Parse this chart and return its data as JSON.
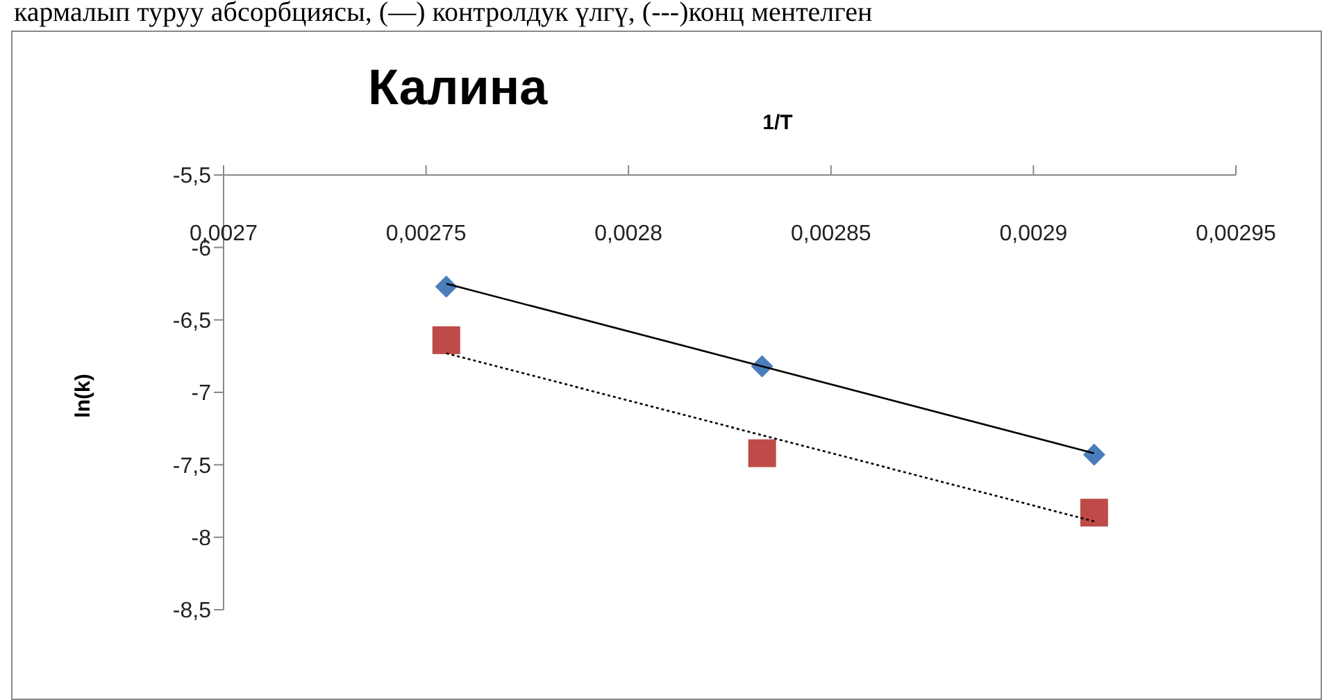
{
  "chart_data": {
    "type": "scatter",
    "title": "Калина",
    "xlabel": "1/T",
    "ylabel": "ln(k)",
    "annotations": [
      "кармалып туруу абсорбциясы, (—) контролдук үлгү, (---)конц ментелген"
    ],
    "xlim": [
      0.0027,
      0.00295
    ],
    "xticks": [
      {
        "value": 0.0027,
        "label": "0,0027"
      },
      {
        "value": 0.00275,
        "label": "0,00275"
      },
      {
        "value": 0.0028,
        "label": "0,0028"
      },
      {
        "value": 0.00285,
        "label": "0,00285"
      },
      {
        "value": 0.0029,
        "label": "0,0029"
      },
      {
        "value": 0.00295,
        "label": "0,00295"
      }
    ],
    "ylim": [
      -8.5,
      -5.5
    ],
    "yticks": [
      {
        "value": -5.5,
        "label": "-5,5"
      },
      {
        "value": -6,
        "label": "-6"
      },
      {
        "value": -6.5,
        "label": "-6,5"
      },
      {
        "value": -7,
        "label": "-7"
      },
      {
        "value": -7.5,
        "label": "-7,5"
      },
      {
        "value": -8,
        "label": "-8"
      },
      {
        "value": -8.5,
        "label": "-8,5"
      }
    ],
    "grid": false,
    "legend": false,
    "series": [
      {
        "type": "scatter",
        "marker": "diamond",
        "color": "#4a7ebb",
        "x": [
          0.002755,
          0.002833,
          0.002915
        ],
        "values": [
          -6.27,
          -6.82,
          -7.43
        ]
      },
      {
        "type": "scatter",
        "marker": "square",
        "color": "#be4b48",
        "x": [
          0.002755,
          0.002833,
          0.002915
        ],
        "values": [
          -6.64,
          -7.42,
          -7.83
        ]
      },
      {
        "type": "line",
        "marker": "none",
        "line_style": "solid",
        "color": "#000000",
        "x": [
          0.002755,
          0.002915
        ],
        "values": [
          -6.25,
          -7.42
        ]
      },
      {
        "type": "line",
        "marker": "none",
        "line_style": "dotted",
        "color": "#000000",
        "x": [
          0.002755,
          0.002915
        ],
        "values": [
          -6.73,
          -7.89
        ]
      }
    ]
  }
}
